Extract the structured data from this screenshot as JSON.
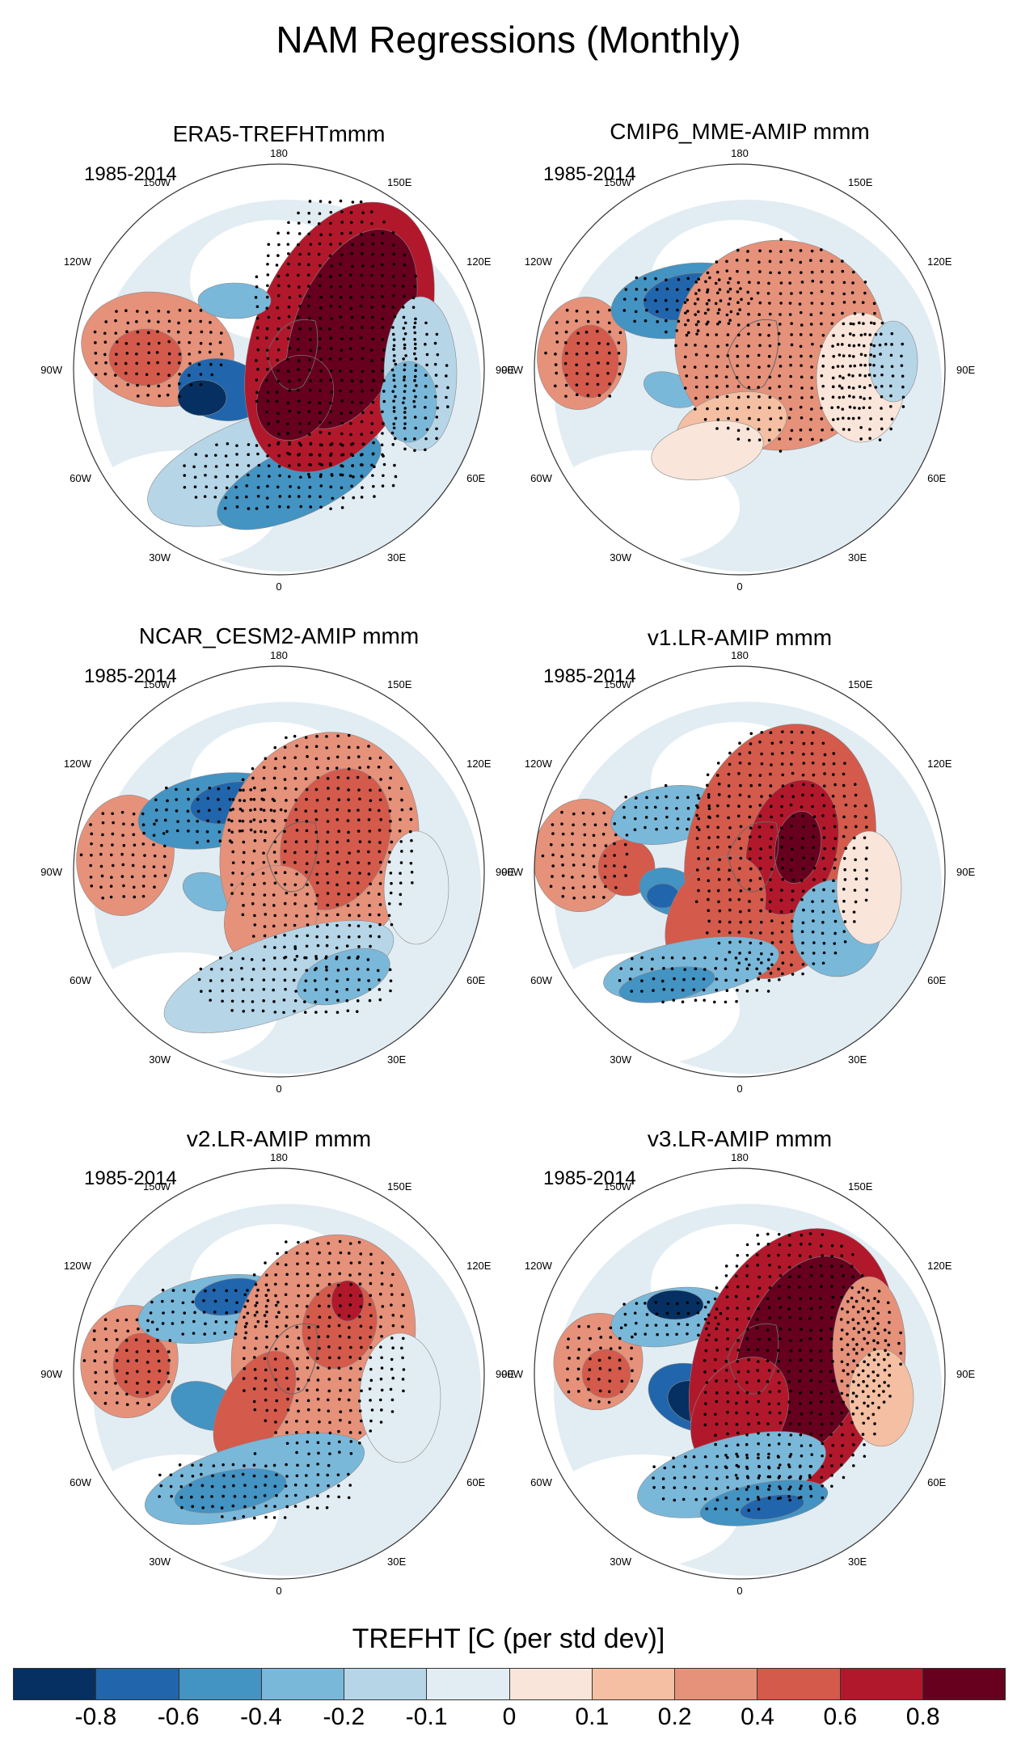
{
  "title": "NAM Regressions (Monthly)",
  "period_label": "1985-2014",
  "panels": [
    {
      "title": "ERA5-TREFHTmmm"
    },
    {
      "title": "CMIP6_MME-AMIP  mmm"
    },
    {
      "title": "NCAR_CESM2-AMIP  mmm"
    },
    {
      "title": "v1.LR-AMIP  mmm"
    },
    {
      "title": "v2.LR-AMIP  mmm"
    },
    {
      "title": "v3.LR-AMIP  mmm"
    }
  ],
  "longitude_labels": [
    "180",
    "150E",
    "120E",
    "90E",
    "60E",
    "30E",
    "0",
    "30W",
    "60W",
    "90W",
    "120W",
    "150W"
  ],
  "colorbar": {
    "title": "TREFHT [C (per std dev)]",
    "tick_labels": [
      "-0.8",
      "-0.6",
      "-0.4",
      "-0.2",
      "-0.1",
      "0",
      "0.1",
      "0.2",
      "0.4",
      "0.6",
      "0.8"
    ],
    "colors": [
      "#053061",
      "#2166ac",
      "#4393c3",
      "#7ab8da",
      "#b6d6e8",
      "#e2edf3",
      "#fae5db",
      "#f4bfa2",
      "#e6917a",
      "#d45a4b",
      "#b2182b",
      "#67001f"
    ]
  }
}
